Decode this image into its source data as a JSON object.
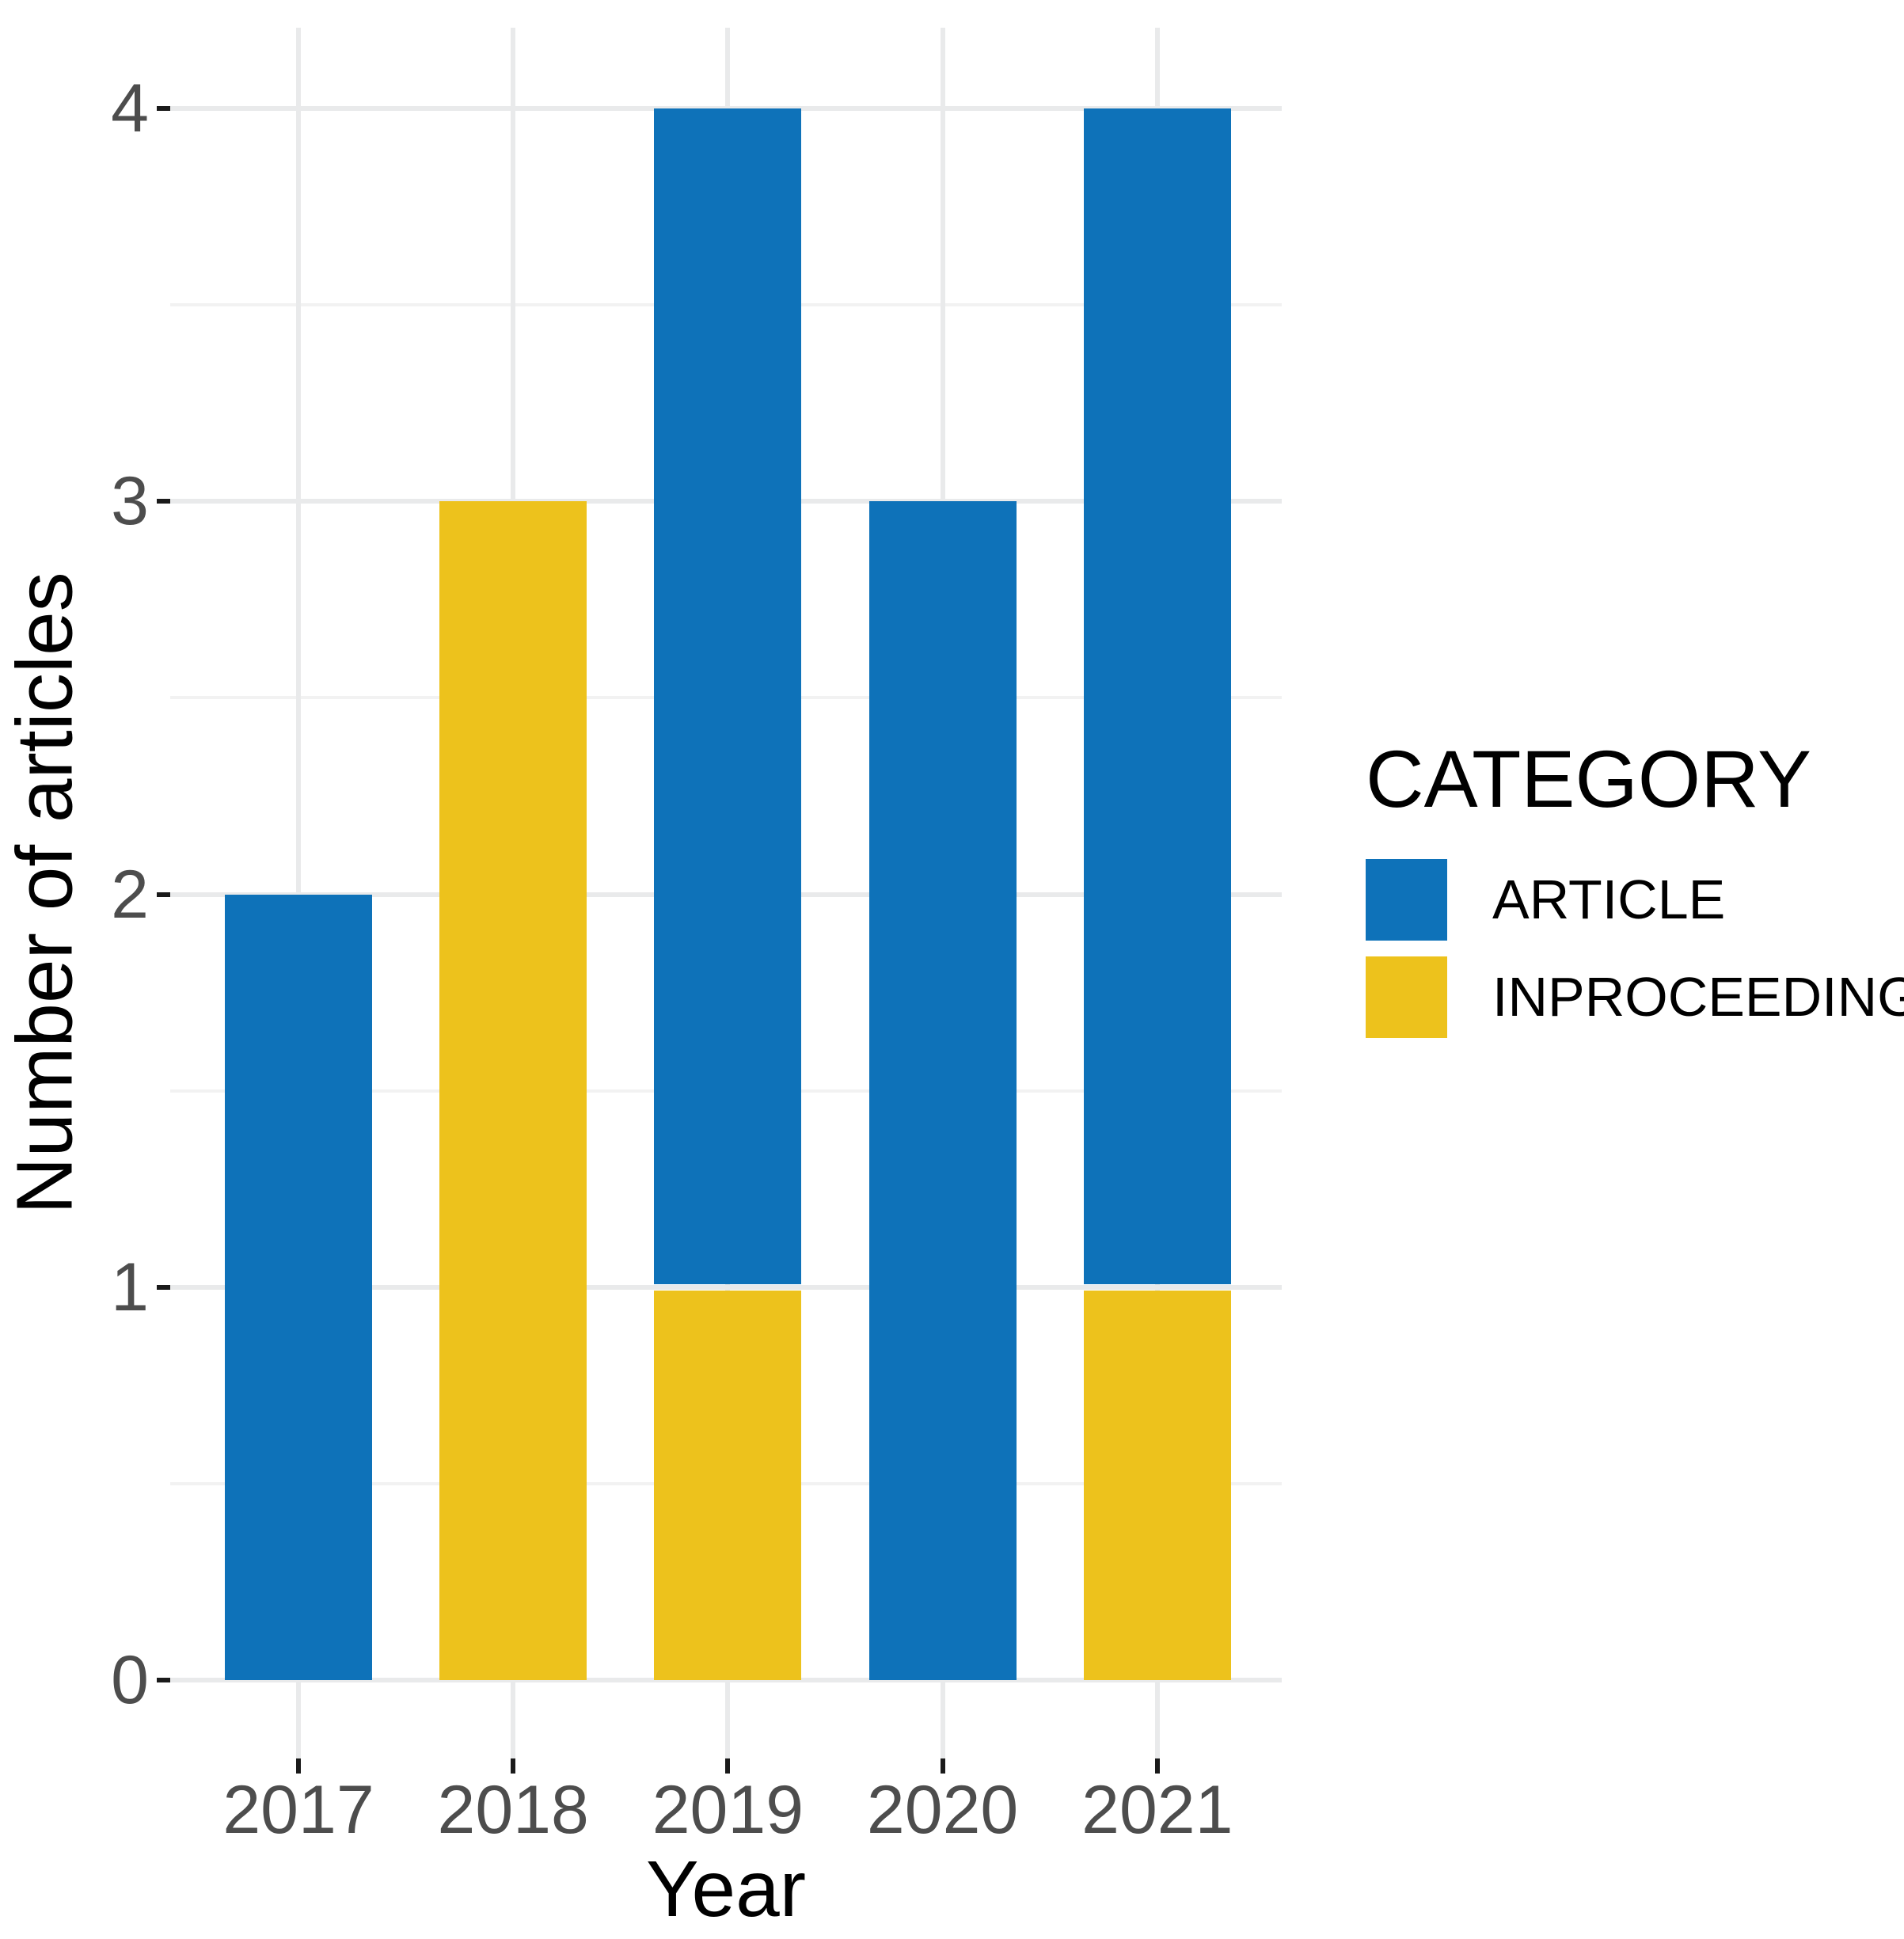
{
  "chart_data": {
    "type": "bar",
    "stacked": true,
    "xlabel": "Year",
    "ylabel": "Number of articles",
    "categories": [
      "2017",
      "2018",
      "2019",
      "2020",
      "2021"
    ],
    "series": [
      {
        "name": "INPROCEEDINGS",
        "color": "#EDC21C",
        "values": [
          0,
          3,
          1,
          0,
          1
        ]
      },
      {
        "name": "ARTICLE",
        "color": "#0E72B9",
        "values": [
          2,
          0,
          3,
          3,
          3
        ]
      }
    ],
    "stack_order_bottom_to_top": [
      "INPROCEEDINGS",
      "ARTICLE"
    ],
    "ylim": [
      0,
      4
    ],
    "yticks": [
      0,
      1,
      2,
      3,
      4
    ],
    "minor_yticks": [
      0.5,
      1.5,
      2.5,
      3.5
    ],
    "grid": {
      "major": true,
      "minor": true,
      "vertical_at_category_centers": true
    },
    "legend": {
      "title": "CATEGORY",
      "position": "right",
      "entries": [
        "ARTICLE",
        "INPROCEEDINGS"
      ]
    }
  },
  "colors": {
    "background": "#FFFFFF",
    "grid_major": "#E9EAEB",
    "grid_minor": "#F2F2F2",
    "tick_mark": "#1A1A1A",
    "tick_label": "#4D4D4D",
    "axis_title": "#000000",
    "legend_text": "#000000",
    "stack_divider": "#FFFFFF"
  }
}
